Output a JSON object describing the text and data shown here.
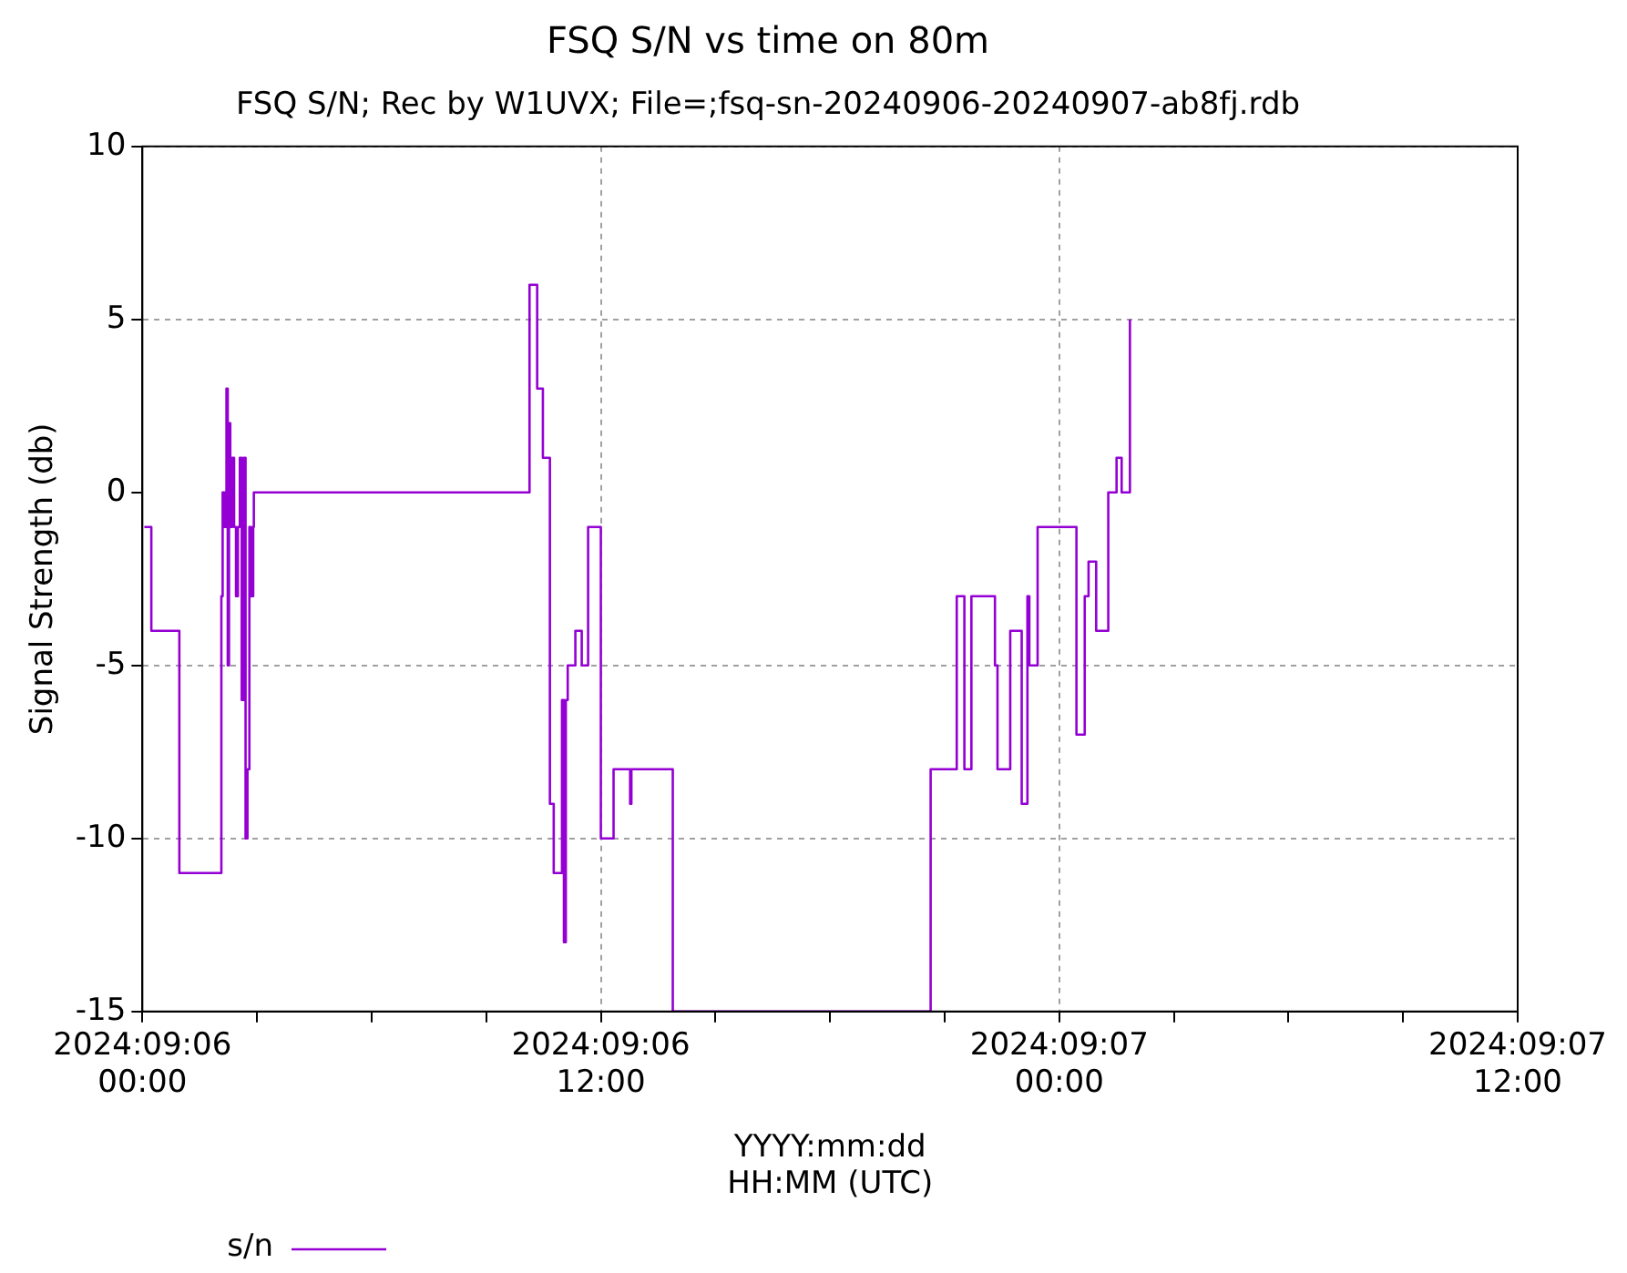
{
  "chart_data": {
    "type": "step",
    "title": "FSQ S/N vs time on 80m",
    "subtitle": "FSQ S/N; Rec by W1UVX; File=;fsq-sn-20240906-20240907-ab8fj.rdb",
    "xlabel": "YYYY:mm:dd\nHH:MM (UTC)",
    "ylabel": "Signal Strength (db)",
    "xlim": [
      "2024-09-06T00:00",
      "2024-09-07T12:00"
    ],
    "ylim": [
      -15,
      10
    ],
    "xticks": [
      {
        "value": "2024-09-06T00:00",
        "label": "2024:09:06\n00:00"
      },
      {
        "value": "2024-09-06T03:00",
        "label": null
      },
      {
        "value": "2024-09-06T06:00",
        "label": null
      },
      {
        "value": "2024-09-06T09:00",
        "label": null
      },
      {
        "value": "2024-09-06T12:00",
        "label": "2024:09:06\n12:00"
      },
      {
        "value": "2024-09-06T15:00",
        "label": null
      },
      {
        "value": "2024-09-06T18:00",
        "label": null
      },
      {
        "value": "2024-09-06T21:00",
        "label": null
      },
      {
        "value": "2024-09-07T00:00",
        "label": "2024:09:07\n00:00"
      },
      {
        "value": "2024-09-07T03:00",
        "label": null
      },
      {
        "value": "2024-09-07T06:00",
        "label": null
      },
      {
        "value": "2024-09-07T09:00",
        "label": null
      },
      {
        "value": "2024-09-07T12:00",
        "label": "2024:09:07\n12:00"
      }
    ],
    "yticks": [
      -15,
      -10,
      -5,
      0,
      5,
      10
    ],
    "grid": true,
    "legend": "bottom left",
    "line_style": "solid",
    "marker": "none",
    "series": [
      {
        "name": "s/n",
        "color": "#9400d3",
        "x": [
          "2024-09-06T00:03",
          "2024-09-06T00:14",
          "2024-09-06T00:58",
          "2024-09-06T02:04",
          "2024-09-06T02:06",
          "2024-09-06T02:09",
          "2024-09-06T02:12",
          "2024-09-06T02:14",
          "2024-09-06T02:16",
          "2024-09-06T02:18",
          "2024-09-06T02:21",
          "2024-09-06T02:24",
          "2024-09-06T02:27",
          "2024-09-06T02:30",
          "2024-09-06T02:33",
          "2024-09-06T02:36",
          "2024-09-06T02:39",
          "2024-09-06T02:42",
          "2024-09-06T02:45",
          "2024-09-06T02:48",
          "2024-09-06T02:51",
          "2024-09-06T02:54",
          "2024-09-06T02:55",
          "2024-09-06T10:08",
          "2024-09-06T10:20",
          "2024-09-06T10:29",
          "2024-09-06T10:40",
          "2024-09-06T10:46",
          "2024-09-06T10:59",
          "2024-09-06T11:02",
          "2024-09-06T11:05",
          "2024-09-06T11:08",
          "2024-09-06T11:20",
          "2024-09-06T11:30",
          "2024-09-06T11:40",
          "2024-09-06T12:00",
          "2024-09-06T12:20",
          "2024-09-06T12:46",
          "2024-09-06T12:48",
          "2024-09-06T13:53",
          "2024-09-06T20:38",
          "2024-09-06T21:19",
          "2024-09-06T21:31",
          "2024-09-06T21:42",
          "2024-09-06T22:19",
          "2024-09-06T22:23",
          "2024-09-06T22:43",
          "2024-09-06T23:01",
          "2024-09-06T23:10",
          "2024-09-06T23:13",
          "2024-09-06T23:26",
          "2024-09-07T00:27",
          "2024-09-07T00:40",
          "2024-09-07T00:46",
          "2024-09-07T00:58",
          "2024-09-07T01:17",
          "2024-09-07T01:30",
          "2024-09-07T01:38",
          "2024-09-07T01:51"
        ],
        "values": [
          -1,
          -4,
          -11,
          -3,
          0,
          -1,
          3,
          -5,
          2,
          -1,
          1,
          -1,
          -3,
          -1,
          1,
          -6,
          1,
          -10,
          -8,
          -1,
          -3,
          -1,
          0,
          6,
          3,
          1,
          -9,
          -11,
          -6,
          -13,
          -6,
          -5,
          -4,
          -5,
          -1,
          -10,
          -8,
          -9,
          -8,
          -15,
          -8,
          -3,
          -8,
          -3,
          -5,
          -8,
          -4,
          -9,
          -3,
          -5,
          -1,
          -7,
          -3,
          -2,
          -4,
          0,
          1,
          0,
          5
        ]
      }
    ]
  }
}
